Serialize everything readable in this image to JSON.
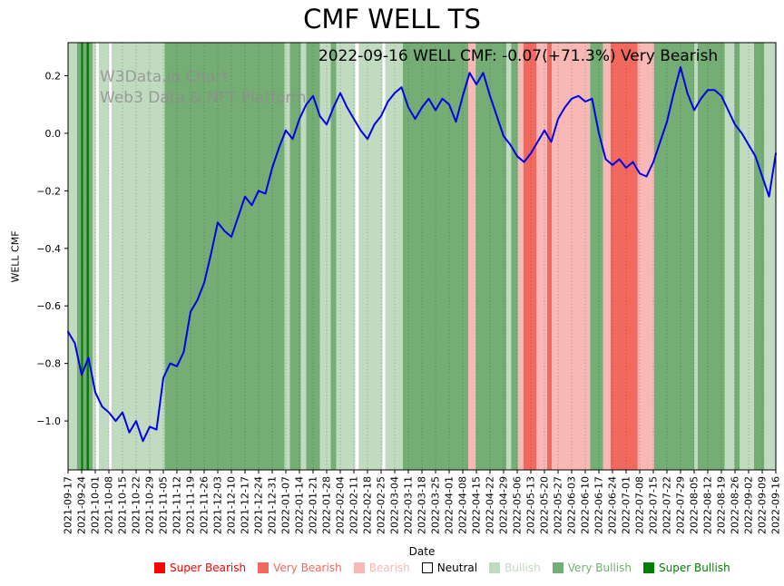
{
  "title": "CMF WELL TS",
  "annotation": "2022-09-16 WELL CMF: -0.07(+71.3%) Very Bearish",
  "watermark": {
    "line1": "W3Data.io Chart",
    "line2": "Web3 Data & NFT Platform"
  },
  "chart_data": {
    "type": "line",
    "title": "CMF WELL TS",
    "xlabel": "Date",
    "ylabel": "WELL CMF",
    "grid": "vertical-dotted",
    "legend_position": "bottom",
    "ylim": [
      -1.17,
      0.315
    ],
    "x_range_weeks": [
      0,
      52
    ],
    "y_tick_values": [
      0.2,
      0.0,
      -0.2,
      -0.4,
      -0.6,
      -0.8,
      -1.0
    ],
    "y_tick_labels": [
      "0.2",
      "0.0",
      "−0.2",
      "−0.4",
      "−0.6",
      "−0.8",
      "−1.0"
    ],
    "x_tick_labels": [
      "2021-09-17",
      "2021-09-24",
      "2021-10-01",
      "2021-10-08",
      "2021-10-15",
      "2021-10-22",
      "2021-10-29",
      "2021-11-05",
      "2021-11-12",
      "2021-11-19",
      "2021-11-26",
      "2021-12-03",
      "2021-12-10",
      "2021-12-17",
      "2021-12-24",
      "2021-12-31",
      "2022-01-07",
      "2022-01-14",
      "2022-01-21",
      "2022-01-28",
      "2022-02-04",
      "2022-02-11",
      "2022-02-18",
      "2022-02-25",
      "2022-03-04",
      "2022-03-11",
      "2022-03-18",
      "2022-03-25",
      "2022-04-01",
      "2022-04-08",
      "2022-04-15",
      "2022-04-22",
      "2022-04-29",
      "2022-05-06",
      "2022-05-13",
      "2022-05-20",
      "2022-05-27",
      "2022-06-03",
      "2022-06-10",
      "2022-06-17",
      "2022-06-24",
      "2022-07-01",
      "2022-07-08",
      "2022-07-15",
      "2022-07-22",
      "2022-07-29",
      "2022-08-05",
      "2022-08-12",
      "2022-08-19",
      "2022-08-26",
      "2022-09-02",
      "2022-09-09",
      "2022-09-16"
    ],
    "series": [
      {
        "name": "WELL CMF",
        "color": "#0000ee",
        "x_step_weeks": 0.5,
        "values": [
          -0.69,
          -0.73,
          -0.84,
          -0.78,
          -0.9,
          -0.95,
          -0.97,
          -1.0,
          -0.97,
          -1.04,
          -1.0,
          -1.07,
          -1.02,
          -1.03,
          -0.85,
          -0.8,
          -0.81,
          -0.76,
          -0.62,
          -0.58,
          -0.52,
          -0.42,
          -0.31,
          -0.34,
          -0.36,
          -0.29,
          -0.22,
          -0.25,
          -0.2,
          -0.21,
          -0.12,
          -0.05,
          0.01,
          -0.02,
          0.05,
          0.1,
          0.13,
          0.06,
          0.03,
          0.09,
          0.14,
          0.09,
          0.05,
          0.01,
          -0.02,
          0.03,
          0.06,
          0.11,
          0.14,
          0.16,
          0.09,
          0.05,
          0.09,
          0.12,
          0.08,
          0.12,
          0.1,
          0.04,
          0.13,
          0.21,
          0.17,
          0.21,
          0.13,
          0.06,
          -0.01,
          -0.04,
          -0.08,
          -0.1,
          -0.07,
          -0.03,
          0.01,
          -0.03,
          0.05,
          0.09,
          0.12,
          0.13,
          0.11,
          0.12,
          0.0,
          -0.09,
          -0.11,
          -0.09,
          -0.12,
          -0.1,
          -0.14,
          -0.15,
          -0.1,
          -0.03,
          0.04,
          0.14,
          0.23,
          0.14,
          0.08,
          0.12,
          0.15,
          0.15,
          0.13,
          0.08,
          0.03,
          0.0,
          -0.04,
          -0.08,
          -0.15,
          -0.22,
          -0.07
        ]
      }
    ],
    "band_colors": {
      "super_bearish": "#ff0000",
      "very_bearish": "#f4695e",
      "bearish": "#f8b8b5",
      "neutral": "#ffffff",
      "bullish": "#c1dbc1",
      "very_bullish": "#74ae74",
      "super_bullish": "#008000"
    },
    "background_bands": [
      {
        "start": 0,
        "end": 0.65,
        "category": "bullish"
      },
      {
        "start": 0.65,
        "end": 0.95,
        "category": "very_bullish"
      },
      {
        "start": 0.95,
        "end": 1.1,
        "category": "super_bullish"
      },
      {
        "start": 1.1,
        "end": 1.35,
        "category": "very_bullish"
      },
      {
        "start": 1.35,
        "end": 1.55,
        "category": "super_bullish"
      },
      {
        "start": 1.55,
        "end": 1.8,
        "category": "very_bullish"
      },
      {
        "start": 1.8,
        "end": 2.05,
        "category": "bullish"
      },
      {
        "start": 2.05,
        "end": 2.25,
        "category": "neutral"
      },
      {
        "start": 2.25,
        "end": 3.0,
        "category": "bullish"
      },
      {
        "start": 3.0,
        "end": 3.2,
        "category": "neutral"
      },
      {
        "start": 3.2,
        "end": 7.1,
        "category": "bullish"
      },
      {
        "start": 7.1,
        "end": 15.9,
        "category": "very_bullish"
      },
      {
        "start": 15.9,
        "end": 16.3,
        "category": "bullish"
      },
      {
        "start": 16.3,
        "end": 17.1,
        "category": "very_bullish"
      },
      {
        "start": 17.1,
        "end": 17.5,
        "category": "bullish"
      },
      {
        "start": 17.5,
        "end": 18.5,
        "category": "very_bullish"
      },
      {
        "start": 18.5,
        "end": 19.3,
        "category": "bullish"
      },
      {
        "start": 19.3,
        "end": 19.7,
        "category": "very_bullish"
      },
      {
        "start": 19.7,
        "end": 21.1,
        "category": "bullish"
      },
      {
        "start": 21.1,
        "end": 21.35,
        "category": "neutral"
      },
      {
        "start": 21.35,
        "end": 23.1,
        "category": "bullish"
      },
      {
        "start": 23.1,
        "end": 23.3,
        "category": "neutral"
      },
      {
        "start": 23.3,
        "end": 24.6,
        "category": "bullish"
      },
      {
        "start": 24.6,
        "end": 29.4,
        "category": "very_bullish"
      },
      {
        "start": 29.4,
        "end": 29.95,
        "category": "bearish"
      },
      {
        "start": 29.95,
        "end": 32.2,
        "category": "very_bullish"
      },
      {
        "start": 32.2,
        "end": 32.55,
        "category": "bullish"
      },
      {
        "start": 32.55,
        "end": 33.05,
        "category": "very_bullish"
      },
      {
        "start": 33.05,
        "end": 33.45,
        "category": "bearish"
      },
      {
        "start": 33.45,
        "end": 34.4,
        "category": "very_bearish"
      },
      {
        "start": 34.4,
        "end": 35.2,
        "category": "bearish"
      },
      {
        "start": 35.2,
        "end": 35.55,
        "category": "very_bearish"
      },
      {
        "start": 35.55,
        "end": 38.35,
        "category": "bearish"
      },
      {
        "start": 38.35,
        "end": 39.3,
        "category": "very_bullish"
      },
      {
        "start": 39.3,
        "end": 39.85,
        "category": "bearish"
      },
      {
        "start": 39.85,
        "end": 41.85,
        "category": "very_bearish"
      },
      {
        "start": 41.85,
        "end": 43.05,
        "category": "bearish"
      },
      {
        "start": 43.05,
        "end": 46.0,
        "category": "very_bullish"
      },
      {
        "start": 46.0,
        "end": 46.25,
        "category": "bullish"
      },
      {
        "start": 46.25,
        "end": 48.25,
        "category": "very_bullish"
      },
      {
        "start": 48.25,
        "end": 48.95,
        "category": "bullish"
      },
      {
        "start": 48.95,
        "end": 49.35,
        "category": "very_bullish"
      },
      {
        "start": 49.35,
        "end": 50.4,
        "category": "bullish"
      },
      {
        "start": 50.4,
        "end": 51.15,
        "category": "very_bullish"
      },
      {
        "start": 51.15,
        "end": 52,
        "category": "bullish"
      }
    ],
    "legend": [
      {
        "label": "Super Bearish",
        "category": "super_bearish"
      },
      {
        "label": "Very Bearish",
        "category": "very_bearish"
      },
      {
        "label": "Bearish",
        "category": "bearish"
      },
      {
        "label": "Neutral",
        "category": "neutral"
      },
      {
        "label": "Bullish",
        "category": "bullish"
      },
      {
        "label": "Very Bullish",
        "category": "very_bullish"
      },
      {
        "label": "Super Bullish",
        "category": "super_bullish"
      }
    ]
  }
}
